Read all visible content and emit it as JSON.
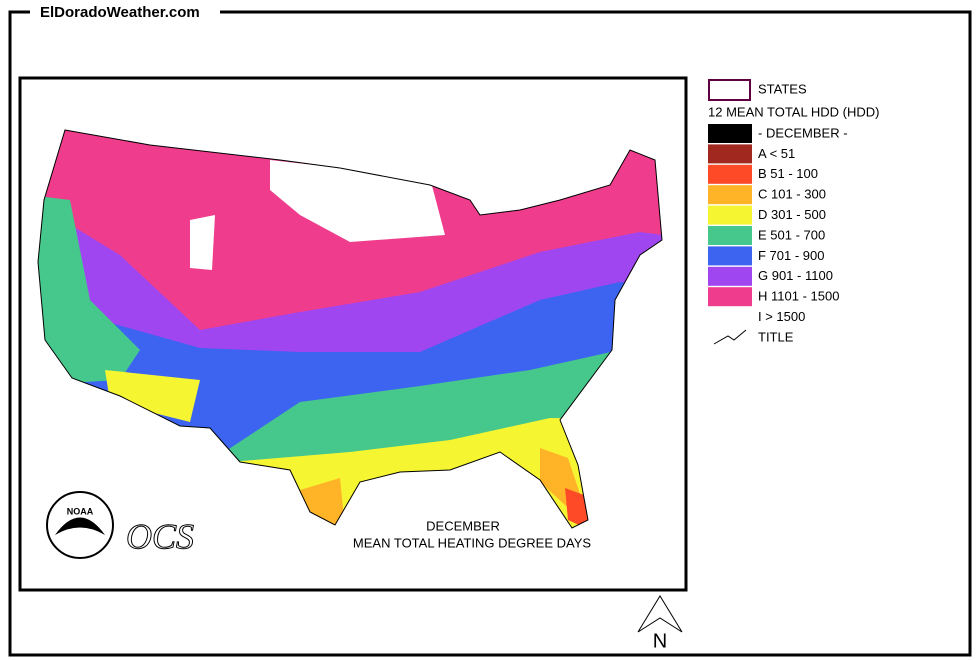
{
  "header": {
    "site": "ElDoradoWeather.com"
  },
  "map": {
    "title": "DECEMBER",
    "subtitle": "MEAN TOTAL HEATING  DEGREE DAYS",
    "noaa": "NOAA",
    "ocs": "OCS",
    "compass": "N"
  },
  "legend": {
    "states": "STATES",
    "heading": "12 MEAN TOTAL HDD (HDD)",
    "items": [
      {
        "label": "- DECEMBER -",
        "color": "#000000"
      },
      {
        "label": "A < 51",
        "color": "#a0281e"
      },
      {
        "label": "B 51 -  100",
        "color": "#ff4a28"
      },
      {
        "label": "C 101 -  300",
        "color": "#ffb428"
      },
      {
        "label": "D 301 -  500",
        "color": "#f5f532"
      },
      {
        "label": "E 501 -  700",
        "color": "#46c88c"
      },
      {
        "label": "F 701 -  900",
        "color": "#3c64f0"
      },
      {
        "label": "G 901 -  1100",
        "color": "#a046f0"
      },
      {
        "label": "H 1101 -  1500",
        "color": "#f03c8c"
      },
      {
        "label": "I  > 1500",
        "color": "#ffffff"
      }
    ],
    "title_entry": "TITLE"
  }
}
